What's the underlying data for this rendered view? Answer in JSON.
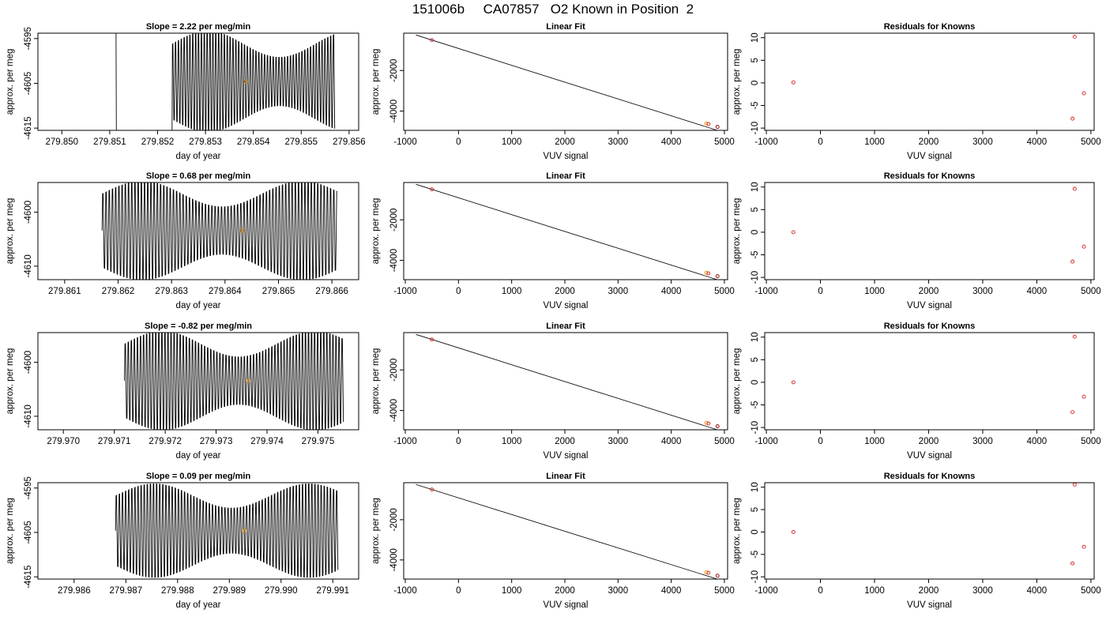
{
  "title": "151006b     CA07857   O2 Known in Position  2",
  "chart_data": [
    {
      "type": "line",
      "panel": "time-series",
      "title": "Slope =  2.22  per meg/min",
      "xlabel": "day of year",
      "ylabel": "approx. per meg",
      "xlim": [
        279.8495,
        279.8562
      ],
      "ylim": [
        -4615.5,
        -4593.8
      ],
      "xticks": [
        "279.850",
        "279.851",
        "279.852",
        "279.853",
        "279.854",
        "279.855",
        "279.856"
      ],
      "yticks": [
        "-4595",
        "-4605",
        "-4615"
      ],
      "x_start": 279.8511,
      "x_end": 279.8557,
      "oscillation_start": 279.8523,
      "x_center": 279.85385,
      "mean": -4604.6,
      "amplitude": 9.6,
      "period": 6e-05
    },
    {
      "type": "scatter",
      "panel": "linear-fit",
      "title": "Linear Fit",
      "xlabel": "VUV signal",
      "ylabel": "approx. per meg",
      "xlim": [
        -1030,
        5060
      ],
      "ylim": [
        -4950,
        -160
      ],
      "xticks": [
        "-1000",
        "0",
        "1000",
        "2000",
        "3000",
        "4000",
        "5000"
      ],
      "yticks": [
        "-2000",
        "-4000"
      ],
      "line": [
        [
          -800,
          -250
        ],
        [
          4950,
          -5020
        ]
      ],
      "points": [
        [
          -500,
          -500
        ],
        [
          4660,
          -4610
        ],
        [
          4700,
          -4640
        ],
        [
          4870,
          -4780
        ]
      ]
    },
    {
      "type": "scatter",
      "panel": "residuals",
      "title": "Residuals for Knowns",
      "xlabel": "VUV signal",
      "ylabel": "approx. per meg",
      "xlim": [
        -1030,
        5060
      ],
      "ylim": [
        -10.5,
        11
      ],
      "xticks": [
        "-1000",
        "0",
        "1000",
        "2000",
        "3000",
        "4000",
        "5000"
      ],
      "yticks": [
        "10",
        "5",
        "0",
        "-5",
        "-10"
      ],
      "points": [
        [
          -500,
          0.1
        ],
        [
          4660,
          -7.9
        ],
        [
          4700,
          10.2
        ],
        [
          4870,
          -2.3
        ]
      ]
    },
    {
      "type": "line",
      "panel": "time-series",
      "title": "Slope =  0.68  per meg/min",
      "xlabel": "day of year",
      "ylabel": "approx. per meg",
      "xlim": [
        279.8605,
        279.8665
      ],
      "ylim": [
        -4612.5,
        -4594.5
      ],
      "xticks": [
        "279.861",
        "279.862",
        "279.863",
        "279.864",
        "279.865",
        "279.866"
      ],
      "yticks": [
        "-4600",
        "-4610"
      ],
      "x_start": 279.8617,
      "x_end": 279.8661,
      "oscillation_start": 279.8617,
      "x_center": 279.86432,
      "mean": -4603.4,
      "amplitude": 7.8,
      "period": 6e-05
    },
    {
      "type": "scatter",
      "panel": "linear-fit",
      "title": "Linear Fit",
      "xlabel": "VUV signal",
      "ylabel": "approx. per meg",
      "xlim": [
        -1030,
        5060
      ],
      "ylim": [
        -4950,
        -160
      ],
      "xticks": [
        "-1000",
        "0",
        "1000",
        "2000",
        "3000",
        "4000",
        "5000"
      ],
      "yticks": [
        "-2000",
        "-4000"
      ],
      "line": [
        [
          -800,
          -250
        ],
        [
          4950,
          -5020
        ]
      ],
      "points": [
        [
          -500,
          -500
        ],
        [
          4660,
          -4610
        ],
        [
          4700,
          -4640
        ],
        [
          4870,
          -4780
        ]
      ]
    },
    {
      "type": "scatter",
      "panel": "residuals",
      "title": "Residuals for Knowns",
      "xlabel": "VUV signal",
      "ylabel": "approx. per meg",
      "xlim": [
        -1030,
        5060
      ],
      "ylim": [
        -10.5,
        11
      ],
      "xticks": [
        "-1000",
        "0",
        "1000",
        "2000",
        "3000",
        "4000",
        "5000"
      ],
      "yticks": [
        "10",
        "5",
        "0",
        "-5",
        "-10"
      ],
      "points": [
        [
          -500,
          0.0
        ],
        [
          4660,
          -6.5
        ],
        [
          4700,
          9.6
        ],
        [
          4870,
          -3.2
        ]
      ]
    },
    {
      "type": "line",
      "panel": "time-series",
      "title": "Slope =  -0.82  per meg/min",
      "xlabel": "day of year",
      "ylabel": "approx. per meg",
      "xlim": [
        279.9695,
        279.9758
      ],
      "ylim": [
        -4612.5,
        -4594.5
      ],
      "xticks": [
        "279.970",
        "279.971",
        "279.972",
        "279.973",
        "279.974",
        "279.975"
      ],
      "yticks": [
        "-4600",
        "-4610"
      ],
      "x_start": 279.9712,
      "x_end": 279.9755,
      "oscillation_start": 279.9712,
      "x_center": 279.97363,
      "mean": -4603.4,
      "amplitude": 7.8,
      "period": 6e-05
    },
    {
      "type": "scatter",
      "panel": "linear-fit",
      "title": "Linear Fit",
      "xlabel": "VUV signal",
      "ylabel": "approx. per meg",
      "xlim": [
        -1030,
        5060
      ],
      "ylim": [
        -4950,
        -160
      ],
      "xticks": [
        "-1000",
        "0",
        "1000",
        "2000",
        "3000",
        "4000",
        "5000"
      ],
      "yticks": [
        "-2000",
        "-4000"
      ],
      "line": [
        [
          -800,
          -250
        ],
        [
          4950,
          -5020
        ]
      ],
      "points": [
        [
          -500,
          -500
        ],
        [
          4660,
          -4610
        ],
        [
          4700,
          -4640
        ],
        [
          4870,
          -4780
        ]
      ]
    },
    {
      "type": "scatter",
      "panel": "residuals",
      "title": "Residuals for Knowns",
      "xlabel": "VUV signal",
      "ylabel": "approx. per meg",
      "xlim": [
        -1030,
        5060
      ],
      "ylim": [
        -10.5,
        11
      ],
      "xticks": [
        "-1000",
        "0",
        "1000",
        "2000",
        "3000",
        "4000",
        "5000"
      ],
      "yticks": [
        "10",
        "5",
        "0",
        "-5",
        "-10"
      ],
      "points": [
        [
          -500,
          0.0
        ],
        [
          4660,
          -6.6
        ],
        [
          4700,
          10.1
        ],
        [
          4870,
          -3.2
        ]
      ]
    },
    {
      "type": "line",
      "panel": "time-series",
      "title": "Slope =  0.09  per meg/min",
      "xlabel": "day of year",
      "ylabel": "approx. per meg",
      "xlim": [
        279.9853,
        279.9915
      ],
      "ylim": [
        -4615.5,
        -4593.8
      ],
      "xticks": [
        "279.986",
        "279.987",
        "279.988",
        "279.989",
        "279.990",
        "279.991"
      ],
      "yticks": [
        "-4595",
        "-4605",
        "-4615"
      ],
      "x_start": 279.9868,
      "x_end": 279.9911,
      "oscillation_start": 279.9868,
      "x_center": 279.98929,
      "mean": -4604.6,
      "amplitude": 9.0,
      "period": 6e-05
    },
    {
      "type": "scatter",
      "panel": "linear-fit",
      "title": "Linear Fit",
      "xlabel": "VUV signal",
      "ylabel": "approx. per meg",
      "xlim": [
        -1030,
        5060
      ],
      "ylim": [
        -4950,
        -160
      ],
      "xticks": [
        "-1000",
        "0",
        "1000",
        "2000",
        "3000",
        "4000",
        "5000"
      ],
      "yticks": [
        "-2000",
        "-4000"
      ],
      "line": [
        [
          -800,
          -250
        ],
        [
          4950,
          -5020
        ]
      ],
      "points": [
        [
          -500,
          -500
        ],
        [
          4660,
          -4610
        ],
        [
          4700,
          -4640
        ],
        [
          4870,
          -4780
        ]
      ]
    },
    {
      "type": "scatter",
      "panel": "residuals",
      "title": "Residuals for Knowns",
      "xlabel": "VUV signal",
      "ylabel": "approx. per meg",
      "xlim": [
        -1030,
        5060
      ],
      "ylim": [
        -10.5,
        11
      ],
      "xticks": [
        "-1000",
        "0",
        "1000",
        "2000",
        "3000",
        "4000",
        "5000"
      ],
      "yticks": [
        "10",
        "5",
        "0",
        "-5",
        "-10"
      ],
      "points": [
        [
          -500,
          0.0
        ],
        [
          4660,
          -7.0
        ],
        [
          4700,
          10.6
        ],
        [
          4870,
          -3.3
        ]
      ]
    }
  ]
}
